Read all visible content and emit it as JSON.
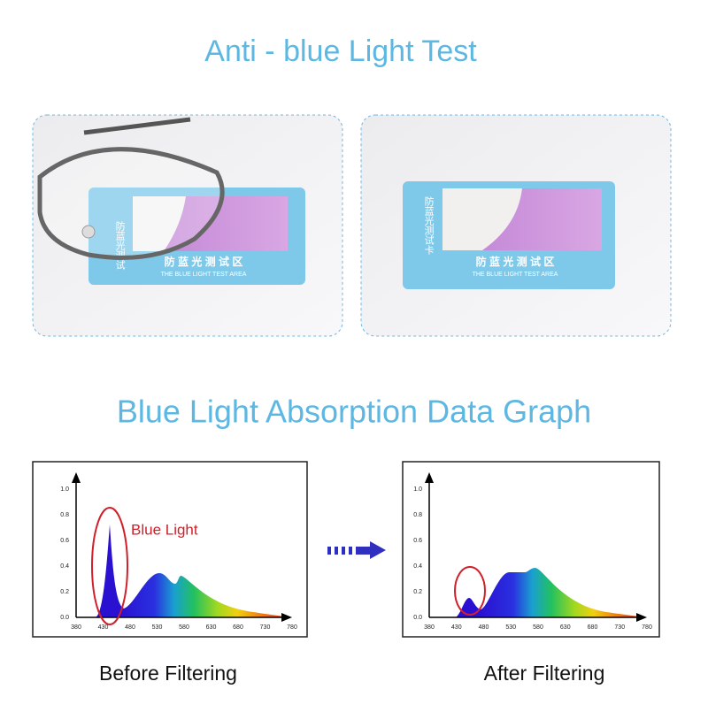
{
  "title": "Anti - blue Light Test",
  "photos": [
    {
      "card_vertical": "防蓝光测试",
      "card_label": "防 蓝 光 测 试 区",
      "card_sublabel": "THE BLUE LIGHT TEST AREA"
    },
    {
      "card_vertical": "防蓝光测试卡",
      "card_label": "防 蓝 光 测 试 区",
      "card_sublabel": "THE BLUE LIGHT TEST AREA"
    }
  ],
  "section_title": "Blue Light Absorption Data Graph",
  "graphs": [
    {
      "y_ticks": [
        "0.0",
        "0.2",
        "0.4",
        "0.6",
        "0.8",
        "1.0"
      ],
      "x_ticks": [
        "380",
        "430",
        "480",
        "530",
        "580",
        "630",
        "680",
        "730",
        "780"
      ],
      "annotation": "Blue Light",
      "caption": "Before Filtering"
    },
    {
      "y_ticks": [
        "0.0",
        "0.2",
        "0.4",
        "0.6",
        "0.8",
        "1.0"
      ],
      "x_ticks": [
        "380",
        "430",
        "480",
        "530",
        "580",
        "630",
        "680",
        "730",
        "780"
      ],
      "caption": "After Filtering"
    }
  ]
}
